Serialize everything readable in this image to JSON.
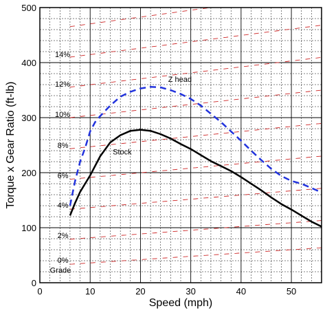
{
  "chart_data": {
    "type": "line",
    "xlabel": "Speed (mph)",
    "ylabel": "Torque x Gear Ratio (ft-lb)",
    "xlim": [
      0,
      56
    ],
    "ylim": [
      0,
      500
    ],
    "x_major_ticks": [
      0,
      10,
      20,
      30,
      40,
      50
    ],
    "y_major_ticks": [
      0,
      100,
      200,
      300,
      400,
      500
    ],
    "x_minor_step": 2,
    "y_minor_step": 20,
    "grid": "dashed major and minor",
    "series": [
      {
        "name": "Stock",
        "style": "solid",
        "color": "#000000",
        "points": [
          [
            6,
            122
          ],
          [
            7,
            145
          ],
          [
            8,
            165
          ],
          [
            10,
            195
          ],
          [
            12,
            230
          ],
          [
            14,
            255
          ],
          [
            16,
            268
          ],
          [
            18,
            276
          ],
          [
            20,
            278
          ],
          [
            22,
            276
          ],
          [
            24,
            270
          ],
          [
            26,
            262
          ],
          [
            28,
            252
          ],
          [
            30,
            243
          ],
          [
            32,
            232
          ],
          [
            34,
            221
          ],
          [
            36,
            212
          ],
          [
            38,
            203
          ],
          [
            40,
            192
          ],
          [
            42,
            180
          ],
          [
            44,
            168
          ],
          [
            46,
            155
          ],
          [
            48,
            143
          ],
          [
            50,
            133
          ],
          [
            52,
            122
          ],
          [
            54,
            111
          ],
          [
            56,
            102
          ]
        ]
      },
      {
        "name": "Z head",
        "style": "dashed",
        "color": "#2233dd",
        "points": [
          [
            6,
            140
          ],
          [
            7,
            185
          ],
          [
            8,
            220
          ],
          [
            9,
            245
          ],
          [
            10,
            275
          ],
          [
            11,
            292
          ],
          [
            12,
            303
          ],
          [
            14,
            322
          ],
          [
            16,
            338
          ],
          [
            18,
            347
          ],
          [
            20,
            353
          ],
          [
            22,
            356
          ],
          [
            24,
            355
          ],
          [
            26,
            350
          ],
          [
            28,
            343
          ],
          [
            30,
            334
          ],
          [
            32,
            322
          ],
          [
            34,
            307
          ],
          [
            36,
            292
          ],
          [
            38,
            275
          ],
          [
            40,
            258
          ],
          [
            42,
            240
          ],
          [
            44,
            223
          ],
          [
            46,
            207
          ],
          [
            48,
            194
          ],
          [
            50,
            185
          ],
          [
            52,
            180
          ],
          [
            54,
            172
          ],
          [
            56,
            164
          ]
        ]
      }
    ],
    "grade_lines": {
      "color": "#cc2222",
      "labels": [
        {
          "text": "Grade",
          "x": 2,
          "y": 18
        },
        {
          "text": "0%",
          "x": 3.5,
          "y": 36
        },
        {
          "text": "2%",
          "x": 3.5,
          "y": 81
        },
        {
          "text": "4%",
          "x": 3.5,
          "y": 136
        },
        {
          "text": "6%",
          "x": 3.5,
          "y": 190
        },
        {
          "text": "8%",
          "x": 3.5,
          "y": 245
        },
        {
          "text": "10%",
          "x": 3,
          "y": 301
        },
        {
          "text": "12%",
          "x": 3,
          "y": 356
        },
        {
          "text": "14%",
          "x": 3,
          "y": 410
        }
      ],
      "lines": [
        {
          "grade": 0,
          "y0": 30,
          "slope": 0.6
        },
        {
          "grade": 2,
          "y0": 75,
          "slope": 0.68
        },
        {
          "grade": 4,
          "y0": 129,
          "slope": 0.76
        },
        {
          "grade": 6,
          "y0": 183,
          "slope": 0.84
        },
        {
          "grade": 8,
          "y0": 238,
          "slope": 0.92
        },
        {
          "grade": 10,
          "y0": 294,
          "slope": 1.0
        },
        {
          "grade": 12,
          "y0": 349,
          "slope": 1.08
        },
        {
          "grade": 14,
          "y0": 403,
          "slope": 1.16
        },
        {
          "grade": 16,
          "y0": 458,
          "slope": 1.24
        }
      ]
    },
    "annotations": [
      {
        "text": "Stock",
        "x": 14.5,
        "y": 233
      },
      {
        "text": "Z head",
        "x": 25.5,
        "y": 365
      }
    ]
  }
}
